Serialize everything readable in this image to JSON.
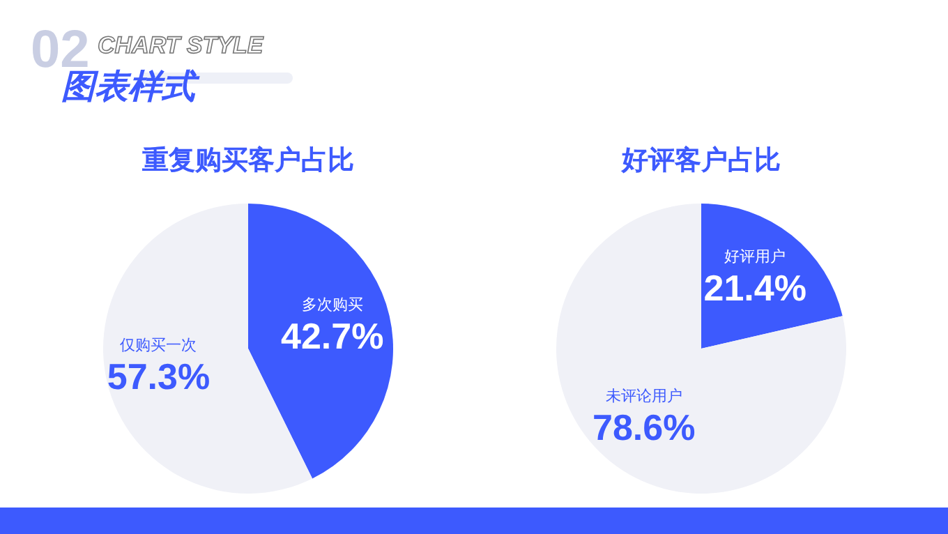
{
  "chart_data": [
    {
      "type": "pie",
      "title": "重复购买客户占比",
      "annotations": [
        "02",
        "CHART STYLE",
        "图表样式"
      ],
      "categories": [
        "多次购买",
        "仅购买一次"
      ],
      "values": [
        42.7,
        57.3
      ],
      "value_labels": [
        "42.7%",
        "57.3%"
      ],
      "colors": [
        "#3d5afe",
        "#f0f1f7"
      ]
    },
    {
      "type": "pie",
      "title": "好评客户占比",
      "categories": [
        "好评用户",
        "未评论用户"
      ],
      "values": [
        21.4,
        78.6
      ],
      "value_labels": [
        "21.4%",
        "78.6%"
      ],
      "colors": [
        "#3d5afe",
        "#f0f1f7"
      ]
    }
  ]
}
